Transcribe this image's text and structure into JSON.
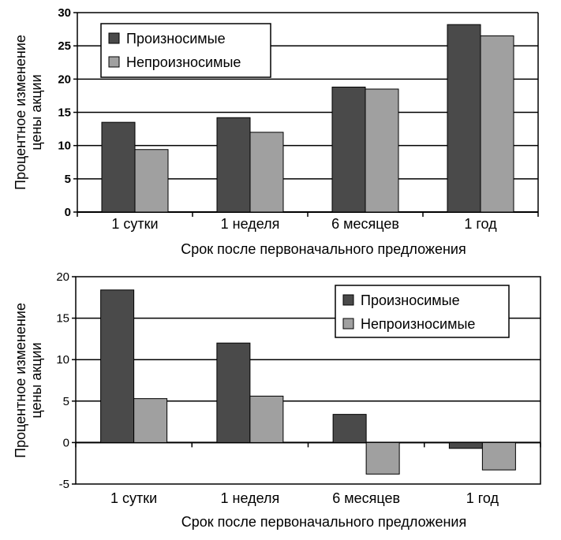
{
  "colors": {
    "series_dark": "#4a4a4a",
    "series_light": "#a0a0a0",
    "frame": "#000000",
    "grid": "#000000"
  },
  "chart_data": [
    {
      "type": "bar",
      "categories": [
        "1 сутки",
        "1 неделя",
        "6 месяцев",
        "1 год"
      ],
      "series": [
        {
          "name": "Произносимые",
          "values": [
            13.5,
            14.2,
            18.8,
            28.2
          ]
        },
        {
          "name": "Непроизносимые",
          "values": [
            9.4,
            12.0,
            18.5,
            26.5
          ]
        }
      ],
      "yticks": [
        0,
        5,
        10,
        15,
        20,
        25,
        30
      ],
      "ylim": [
        0,
        30
      ],
      "xlabel": "Срок после первоначального предложения",
      "ylabel_lines": [
        "Процентное изменение",
        "цены акции"
      ],
      "legend": "top-left",
      "grid": true
    },
    {
      "type": "bar",
      "categories": [
        "1 сутки",
        "1 неделя",
        "6 месяцев",
        "1 год"
      ],
      "series": [
        {
          "name": "Произносимые",
          "values": [
            18.4,
            12.0,
            3.4,
            -0.7
          ]
        },
        {
          "name": "Непроизносимые",
          "values": [
            5.3,
            5.6,
            -3.8,
            -3.3
          ]
        }
      ],
      "yticks": [
        -5,
        0,
        5,
        10,
        15,
        20
      ],
      "ylim": [
        -5,
        20
      ],
      "xlabel": "Срок после первоначального предложения",
      "ylabel_lines": [
        "Процентное изменение",
        "цены акции"
      ],
      "legend": "top-right",
      "grid": true
    }
  ]
}
